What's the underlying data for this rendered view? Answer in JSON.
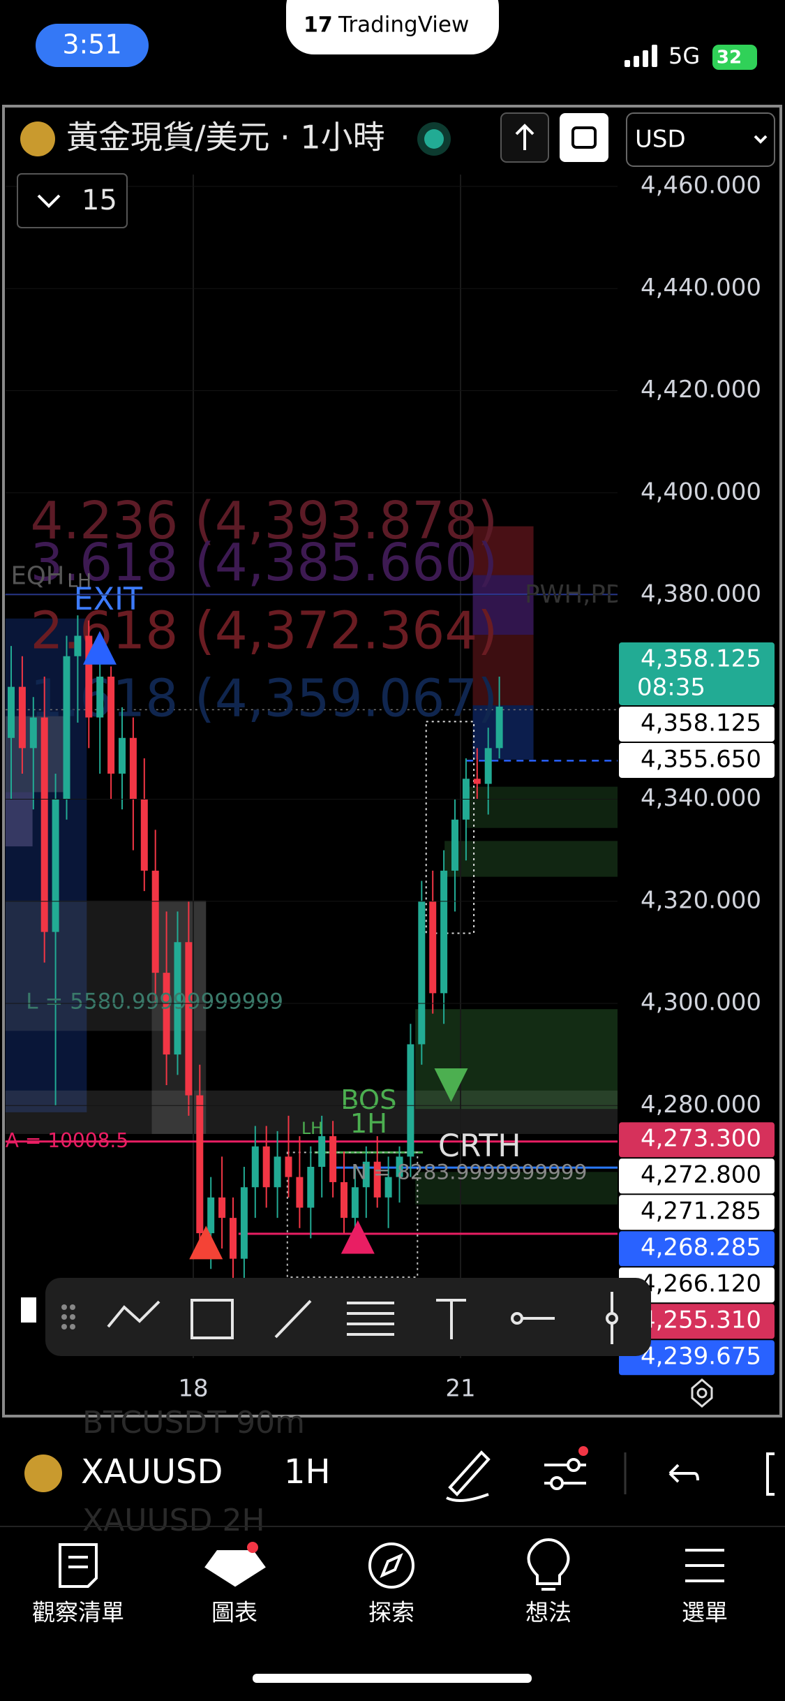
{
  "status_bar": {
    "time": "3:51",
    "network": "5G",
    "battery": "32"
  },
  "app_badge": "TradingView",
  "header": {
    "title": "黃金現貨/美元 · 1小時",
    "currency": "USD",
    "indicator_count": "15"
  },
  "chart": {
    "price_ticks": [
      {
        "value": 4460,
        "label": "4,460.000"
      },
      {
        "value": 4440,
        "label": "4,440.000"
      },
      {
        "value": 4420,
        "label": "4,420.000"
      },
      {
        "value": 4400,
        "label": "4,400.000"
      },
      {
        "value": 4380,
        "label": "4,380.000"
      },
      {
        "value": 4340,
        "label": "4,340.000"
      },
      {
        "value": 4320,
        "label": "4,320.000"
      },
      {
        "value": 4300,
        "label": "4,300.000"
      },
      {
        "value": 4280,
        "label": "4,280.000"
      }
    ],
    "time_ticks": [
      "18",
      "21"
    ],
    "up_color": "#22ab94",
    "down_color": "#f23645",
    "candles": {
      "open": [
        4352,
        4362,
        4350,
        4356,
        4314,
        4340,
        4368,
        4372,
        4356,
        4364,
        4345,
        4352,
        4340,
        4326,
        4306,
        4290,
        4312,
        4282,
        4255,
        4262,
        4258,
        4250,
        4264,
        4272,
        4264,
        4270,
        4266,
        4260,
        4268,
        4274,
        4265,
        4258,
        4264,
        4269,
        4262,
        4266,
        4270,
        4292,
        4320,
        4302,
        4326,
        4336,
        4344,
        4343,
        4350
      ],
      "high": [
        4370,
        4368,
        4360,
        4364,
        4345,
        4372,
        4376,
        4375,
        4368,
        4366,
        4358,
        4356,
        4348,
        4334,
        4318,
        4318,
        4320,
        4288,
        4266,
        4270,
        4262,
        4268,
        4276,
        4276,
        4275,
        4278,
        4274,
        4272,
        4278,
        4277,
        4271,
        4268,
        4272,
        4274,
        4270,
        4272,
        4296,
        4324,
        4326,
        4330,
        4340,
        4348,
        4350,
        4354,
        4364
      ],
      "low": [
        4340,
        4345,
        4338,
        4308,
        4280,
        4336,
        4355,
        4350,
        4345,
        4340,
        4338,
        4330,
        4322,
        4300,
        4284,
        4286,
        4278,
        4250,
        4248,
        4252,
        4246,
        4246,
        4258,
        4260,
        4258,
        4262,
        4256,
        4254,
        4262,
        4262,
        4255,
        4252,
        4258,
        4260,
        4256,
        4261,
        4266,
        4288,
        4298,
        4296,
        4318,
        4328,
        4340,
        4337,
        4348
      ],
      "close": [
        4362,
        4350,
        4356,
        4314,
        4340,
        4368,
        4372,
        4356,
        4364,
        4345,
        4352,
        4340,
        4326,
        4306,
        4290,
        4312,
        4282,
        4255,
        4262,
        4258,
        4250,
        4264,
        4272,
        4264,
        4270,
        4266,
        4260,
        4268,
        4274,
        4265,
        4258,
        4264,
        4269,
        4262,
        4266,
        4270,
        4292,
        4320,
        4302,
        4326,
        4336,
        4344,
        4343,
        4350,
        4358.125
      ]
    },
    "price_tags": [
      {
        "value": 4358.125,
        "label": "4,358.125",
        "countdown": "08:35",
        "color": "#22ab94"
      },
      {
        "value": 4358.125,
        "label": "4,358.125",
        "color": "#ffffff"
      },
      {
        "value": 4355.65,
        "label": "4,355.650",
        "color": "#ffffff"
      },
      {
        "value": 4273.3,
        "label": "4,273.300",
        "color": "#d6315b"
      },
      {
        "value": 4272.8,
        "label": "4,272.800",
        "color": "#ffffff"
      },
      {
        "value": 4271.285,
        "label": "4,271.285",
        "color": "#ffffff"
      },
      {
        "value": 4268.285,
        "label": "4,268.285",
        "color": "#2962ff"
      },
      {
        "value": 4266.12,
        "label": "4,266.120",
        "color": "#ffffff"
      },
      {
        "value": 4255.31,
        "label": "4,255.310",
        "color": "#d6315b"
      },
      {
        "value": 4239.675,
        "label": "4,239.675",
        "color": "#2962ff"
      }
    ],
    "fib_levels": [
      {
        "value": 4393.878,
        "label": "4.236 (4,393.878)",
        "color": "#5c1b26"
      },
      {
        "value": 4385.66,
        "label": "3.618 (4,385.660)",
        "color": "#3d1a52"
      },
      {
        "value": 4372.364,
        "label": "2.618 (4,372.364)",
        "color": "#6a1c22"
      },
      {
        "value": 4359.067,
        "label": "1.618 (4,359.067)",
        "color": "#10264f"
      }
    ],
    "annotations": [
      "EQH",
      "LH",
      "EXIT",
      "PWH,PDH",
      "BOS",
      "1H",
      "CRTH",
      "L = 5580.99999999999",
      "N = 8283.9999999999",
      "A = 10008.5",
      "LH"
    ]
  },
  "symbol_bar": {
    "symbol": "XAUUSD",
    "interval": "1H",
    "ghost_above": "BTCUSDT   90m",
    "ghost_below": "XAUUSD   2H"
  },
  "tabs": [
    "觀察清單",
    "圖表",
    "探索",
    "想法",
    "選單"
  ]
}
